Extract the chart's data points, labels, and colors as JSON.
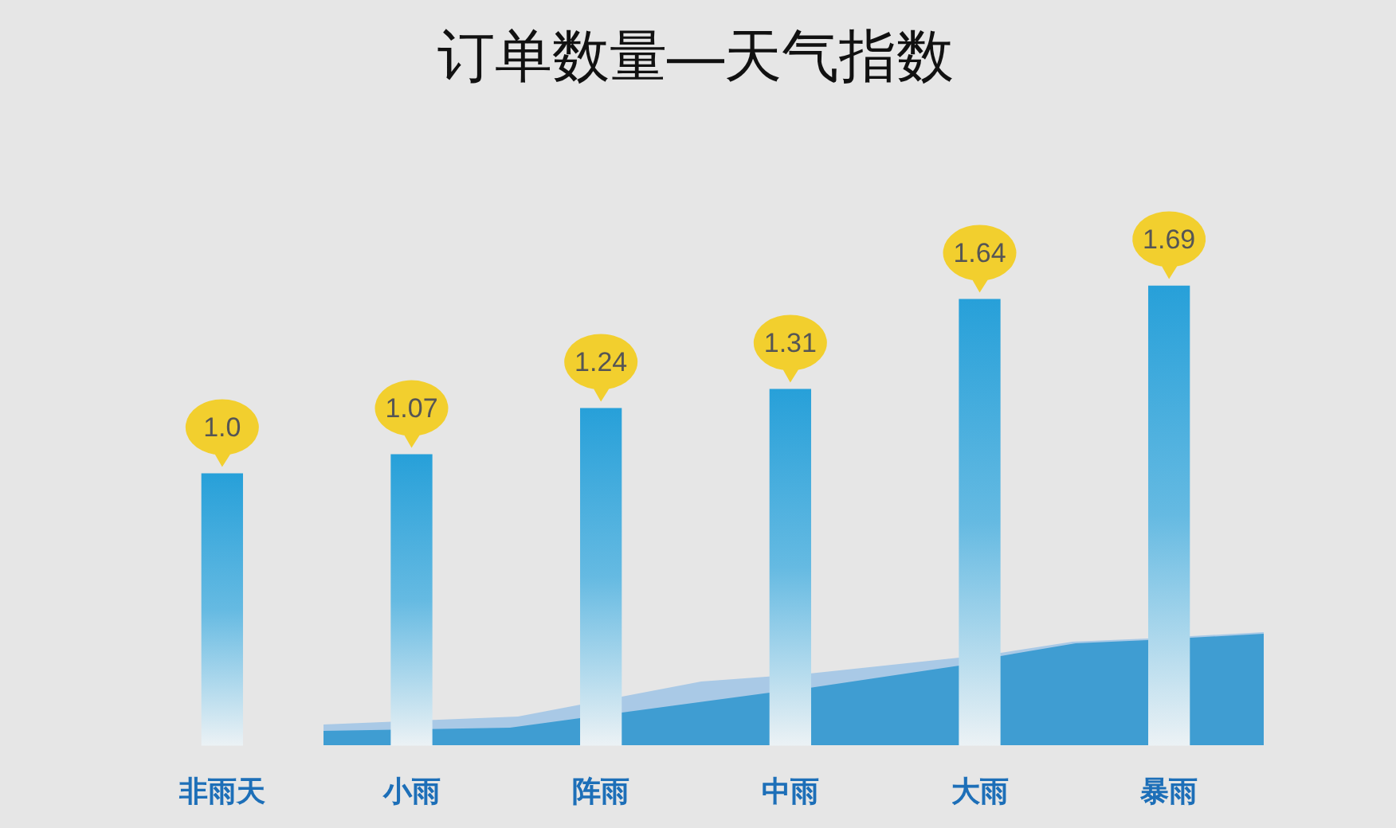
{
  "chart_data": {
    "type": "bar",
    "title": "订单数量—天气指数",
    "categories": [
      "非雨天",
      "小雨",
      "阵雨",
      "中雨",
      "大雨",
      "暴雨"
    ],
    "values": [
      1.0,
      1.07,
      1.24,
      1.31,
      1.64,
      1.69
    ],
    "value_labels": [
      "1.0",
      "1.07",
      "1.24",
      "1.31",
      "1.64",
      "1.69"
    ],
    "color": "#27a0d9",
    "tick_labels": "x"
  }
}
